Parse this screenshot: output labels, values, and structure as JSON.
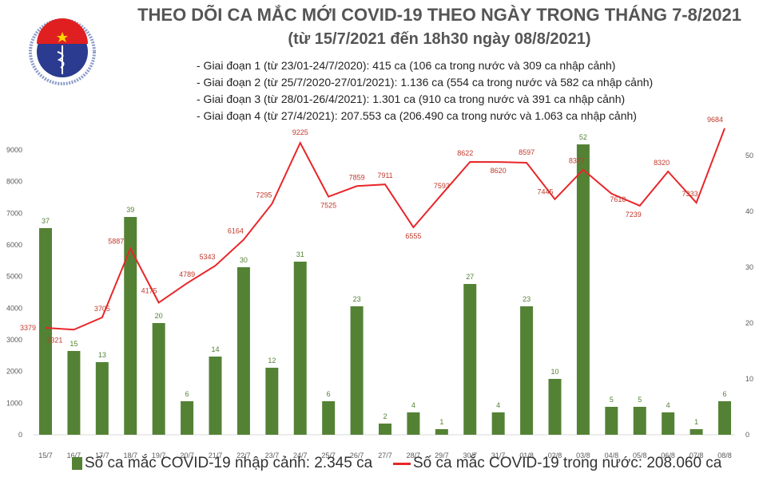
{
  "header": {
    "title": "THEO DÕI CA MẮC MỚI COVID-19 THEO NGÀY TRONG THÁNG 7-8/2021",
    "subtitle": "(từ 15/7/2021 đến 18h30 ngày 08/8/2021)",
    "notes": [
      "- Giai đoạn 1 (từ 23/01-24/7/2020): 415 ca (106 ca trong nước và 309 ca nhập cảnh)",
      "- Giai đoạn 2 (từ 25/7/2020-27/01/2021): 1.136 ca (554 ca trong nước và 582 ca nhập cảnh)",
      "- Giai đoạn 3 (từ 28/01-26/4/2021): 1.301 ca (910 ca trong nước và 391 ca nhập cảnh)",
      "- Giai đoạn 4 (từ 27/4/2021): 207.553 ca (206.490 ca trong nước và 1.063 ca nhập cảnh)"
    ],
    "logo_text": [
      "BỘ Y TẾ",
      "MINISTRY OF HEALTH"
    ]
  },
  "chart_data": {
    "type": "bar+line",
    "categories": [
      "15/7",
      "16/7",
      "17/7",
      "18/7",
      "19/7",
      "20/7",
      "21/7",
      "22/7",
      "23/7",
      "24/7",
      "25/7",
      "26/7",
      "27/7",
      "28/7",
      "29/7",
      "30/7",
      "31/7",
      "01/8",
      "02/8",
      "03/8",
      "04/8",
      "05/8",
      "06/8",
      "07/8",
      "08/8"
    ],
    "series": [
      {
        "name": "Số ca mắc COVID-19 nhập cảnh: 2.345 ca",
        "type": "bar",
        "axis": "right",
        "color": "#548235",
        "values": [
          37,
          15,
          13,
          39,
          20,
          6,
          14,
          30,
          12,
          31,
          6,
          23,
          2,
          4,
          1,
          27,
          4,
          23,
          10,
          52,
          5,
          5,
          4,
          1,
          6
        ]
      },
      {
        "name": "Số ca mắc COVID-19 trong nước: 208.060 ca",
        "type": "line",
        "axis": "left",
        "color": "#e8262a",
        "values": [
          3379,
          3321,
          3705,
          5887,
          4175,
          4789,
          5343,
          6164,
          7295,
          9225,
          7525,
          7859,
          7911,
          6555,
          7593,
          8622,
          8620,
          8597,
          7445,
          8377,
          7618,
          7239,
          8320,
          7333,
          9684
        ]
      }
    ],
    "left_axis": {
      "ylim": [
        0,
        9000
      ],
      "ticks": [
        0,
        1000,
        2000,
        3000,
        4000,
        5000,
        6000,
        7000,
        8000,
        9000
      ]
    },
    "right_axis": {
      "ylim": [
        0,
        50
      ],
      "ticks": [
        0,
        10,
        20,
        30,
        40,
        50
      ]
    },
    "grid": false,
    "legend": "bottom"
  }
}
